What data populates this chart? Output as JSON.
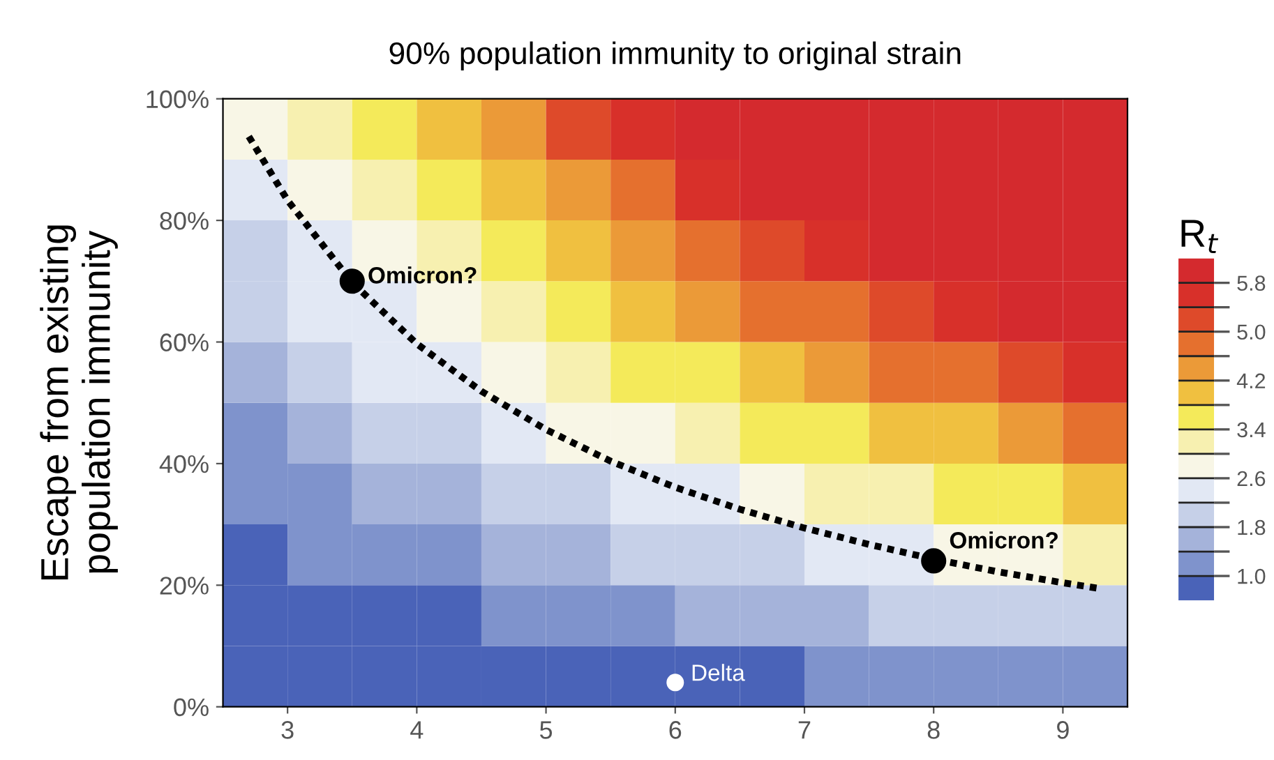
{
  "chart_data": {
    "type": "heatmap",
    "title": "90% population immunity to original strain",
    "ylabel": "Escape from existing\npopulation immunity",
    "clabel": "R$_{t}$",
    "xlim": [
      2.5,
      9.5
    ],
    "xticks": [
      3,
      4,
      5,
      6,
      7,
      8,
      9
    ],
    "ylim": [
      0,
      100
    ],
    "yticks": [
      {
        "value": 0,
        "label": "0%"
      },
      {
        "value": 20,
        "label": "20%"
      },
      {
        "value": 40,
        "label": "40%"
      },
      {
        "value": 60,
        "label": "60%"
      },
      {
        "value": 80,
        "label": "80%"
      },
      {
        "value": 100,
        "label": "100%"
      }
    ],
    "clim": [
      0.6,
      6.2
    ],
    "cticks": [
      {
        "value": 1,
        "label": "1.0"
      },
      {
        "value": 1.4,
        "label": null
      },
      1.8,
      {
        "value": 2.2,
        "label": null
      },
      2.6,
      {
        "value": 3,
        "label": null
      },
      3.4,
      {
        "value": 3.8,
        "label": null
      },
      4.2,
      {
        "value": 4.6,
        "label": null
      },
      {
        "value": 5,
        "label": "5.0"
      },
      {
        "value": 5.4,
        "label": null
      },
      5.8
    ],
    "colors": [
      "#4a63b8",
      "#7f93cc",
      "#a5b3da",
      "#c6d0e8",
      "#e2e8f4",
      "#f8f6e6",
      "#f7f0b0",
      "#f4ea5a",
      "#f0c040",
      "#eb9a38",
      "#e5702e",
      "#de4a2a",
      "#d8302a",
      "#d42a2e"
    ],
    "cells": [
      [
        2.8,
        3.2,
        3.6,
        4.0,
        4.4,
        5.2,
        5.6,
        6.0,
        6.0,
        6.0,
        6.0,
        6.0,
        6.0,
        6.0
      ],
      [
        2.4,
        2.8,
        3.2,
        3.6,
        4.0,
        4.4,
        4.8,
        5.6,
        6.0,
        6.0,
        6.0,
        6.0,
        6.0,
        6.0
      ],
      [
        2.0,
        2.4,
        2.8,
        3.2,
        3.6,
        4.0,
        4.4,
        4.8,
        5.2,
        5.6,
        6.0,
        6.0,
        6.0,
        6.0
      ],
      [
        2.0,
        2.4,
        2.4,
        2.8,
        3.2,
        3.6,
        4.0,
        4.4,
        4.8,
        4.8,
        5.2,
        5.6,
        6.0,
        6.0
      ],
      [
        1.6,
        2.0,
        2.4,
        2.4,
        2.8,
        3.2,
        3.6,
        3.6,
        4.0,
        4.4,
        4.8,
        4.8,
        5.2,
        5.6
      ],
      [
        1.2,
        1.6,
        2.0,
        2.0,
        2.4,
        2.8,
        2.8,
        3.2,
        3.6,
        3.6,
        4.0,
        4.0,
        4.4,
        4.8
      ],
      [
        1.2,
        1.2,
        1.6,
        1.6,
        2.0,
        2.0,
        2.4,
        2.4,
        2.8,
        3.2,
        3.2,
        3.6,
        3.6,
        4.0
      ],
      [
        0.8,
        1.2,
        1.2,
        1.2,
        1.6,
        1.6,
        2.0,
        2.0,
        2.0,
        2.4,
        2.4,
        2.8,
        2.8,
        3.2
      ],
      [
        0.8,
        0.8,
        0.8,
        0.8,
        1.2,
        1.2,
        1.2,
        1.6,
        1.6,
        1.6,
        2.0,
        2.0,
        2.0,
        2.0
      ],
      [
        0.8,
        0.8,
        0.8,
        0.8,
        0.8,
        0.8,
        0.8,
        0.8,
        0.8,
        1.2,
        1.2,
        1.2,
        1.2,
        1.2
      ]
    ],
    "series": [
      {
        "type": "line",
        "color": "#000000",
        "line_style": "dotted",
        "x": [
          2.7,
          3,
          3.5,
          4,
          4.5,
          5,
          5.5,
          6,
          6.5,
          7,
          7.5,
          8,
          8.5,
          9,
          9.3
        ],
        "values": [
          93.8,
          83.3,
          69.8,
          59.7,
          51.9,
          45.6,
          40.4,
          36.1,
          32.5,
          29.4,
          26.7,
          24.3,
          22.2,
          20.4,
          19.4
        ]
      },
      {
        "type": "scatter",
        "color": "#000000",
        "marker": "circle",
        "x": [
          3.5,
          8
        ],
        "values": [
          70,
          24
        ]
      },
      {
        "type": "scatter",
        "color": "#ffffff",
        "marker": "circle",
        "x": [
          6
        ],
        "values": [
          4
        ]
      }
    ],
    "annotations": [
      {
        "text": "Omicron?",
        "x": 3.5,
        "y": 70
      },
      {
        "text": "Omicron?",
        "x": 8,
        "y": 24
      },
      {
        "text": "Delta",
        "x": 6,
        "y": 4
      }
    ],
    "grid": false,
    "legend": false
  }
}
